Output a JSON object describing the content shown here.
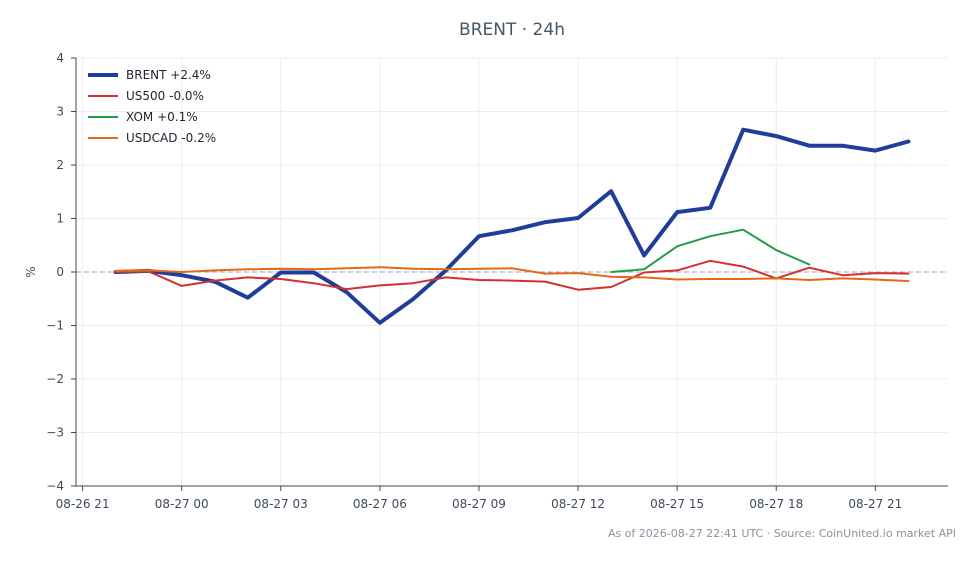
{
  "title": "BRENT · 24h",
  "footer": "As of 2026-08-27 22:41 UTC · Source: CoinUnited.io market API",
  "chart_data": {
    "type": "line",
    "title": "BRENT · 24h",
    "ylabel": "%",
    "xlabel": "",
    "ylim": [
      -4,
      4
    ],
    "yticks": [
      -4,
      -3,
      -2,
      -1,
      0,
      1,
      2,
      3,
      4
    ],
    "ytick_labels": [
      "−4",
      "−3",
      "−2",
      "−1",
      "0",
      "1",
      "2",
      "3",
      "4"
    ],
    "xlim": [
      "08-26 20:48",
      "08-27 23:12"
    ],
    "xticks": [
      "08-26 21:00",
      "08-27 00:00",
      "08-27 03:00",
      "08-27 06:00",
      "08-27 09:00",
      "08-27 12:00",
      "08-27 15:00",
      "08-27 18:00",
      "08-27 21:00"
    ],
    "xtick_labels": [
      "08-26 21",
      "08-27 00",
      "08-27 03",
      "08-27 06",
      "08-27 09",
      "08-27 12",
      "08-27 15",
      "08-27 18",
      "08-27 21"
    ],
    "grid": true,
    "zero_line": true,
    "legend_position": "top-left",
    "series": [
      {
        "name": "BRENT +2.4%",
        "color": "#1f3d99",
        "width": 4,
        "x": [
          "08-26 22:00",
          "08-26 23:00",
          "08-27 00:00",
          "08-27 01:00",
          "08-27 02:00",
          "08-27 03:00",
          "08-27 04:00",
          "08-27 05:00",
          "08-27 06:00",
          "08-27 07:00",
          "08-27 08:00",
          "08-27 09:00",
          "08-27 10:00",
          "08-27 11:00",
          "08-27 12:00",
          "08-27 13:00",
          "08-27 14:00",
          "08-27 15:00",
          "08-27 16:00",
          "08-27 17:00",
          "08-27 18:00",
          "08-27 19:00",
          "08-27 20:00",
          "08-27 21:00",
          "08-27 22:00"
        ],
        "values": [
          0.0,
          0.02,
          -0.06,
          -0.18,
          -0.48,
          -0.01,
          -0.01,
          -0.38,
          -0.95,
          -0.51,
          0.03,
          0.67,
          0.78,
          0.93,
          1.01,
          1.51,
          0.31,
          1.12,
          1.2,
          2.66,
          2.54,
          2.36,
          2.36,
          2.27,
          2.44
        ]
      },
      {
        "name": "US500 -0.0%",
        "color": "#d62f2f",
        "width": 2,
        "x": [
          "08-26 22:00",
          "08-26 23:00",
          "08-27 00:00",
          "08-27 01:00",
          "08-27 02:00",
          "08-27 03:00",
          "08-27 04:00",
          "08-27 05:00",
          "08-27 06:00",
          "08-27 07:00",
          "08-27 08:00",
          "08-27 09:00",
          "08-27 10:00",
          "08-27 11:00",
          "08-27 12:00",
          "08-27 13:00",
          "08-27 14:00",
          "08-27 15:00",
          "08-27 16:00",
          "08-27 17:00",
          "08-27 18:00",
          "08-27 19:00",
          "08-27 20:00",
          "08-27 21:00",
          "08-27 22:00"
        ],
        "values": [
          0.0,
          0.01,
          -0.26,
          -0.16,
          -0.1,
          -0.13,
          -0.21,
          -0.32,
          -0.25,
          -0.21,
          -0.1,
          -0.15,
          -0.16,
          -0.18,
          -0.33,
          -0.28,
          -0.01,
          0.03,
          0.21,
          0.1,
          -0.12,
          0.08,
          -0.06,
          -0.02,
          -0.03
        ]
      },
      {
        "name": "XOM +0.1%",
        "color": "#1f9e4a",
        "width": 2,
        "x": [
          "08-27 13:00",
          "08-27 14:00",
          "08-27 15:00",
          "08-27 16:00",
          "08-27 17:00",
          "08-27 18:00",
          "08-27 19:00"
        ],
        "values": [
          0.0,
          0.05,
          0.48,
          0.67,
          0.79,
          0.41,
          0.14
        ]
      },
      {
        "name": "USDCAD -0.2%",
        "color": "#e3691a",
        "width": 2,
        "x": [
          "08-26 22:00",
          "08-26 23:00",
          "08-27 00:00",
          "08-27 01:00",
          "08-27 02:00",
          "08-27 03:00",
          "08-27 04:00",
          "08-27 05:00",
          "08-27 06:00",
          "08-27 07:00",
          "08-27 08:00",
          "08-27 09:00",
          "08-27 10:00",
          "08-27 11:00",
          "08-27 12:00",
          "08-27 13:00",
          "08-27 14:00",
          "08-27 15:00",
          "08-27 16:00",
          "08-27 17:00",
          "08-27 18:00",
          "08-27 19:00",
          "08-27 20:00",
          "08-27 21:00",
          "08-27 22:00"
        ],
        "values": [
          0.02,
          0.03,
          0.0,
          0.03,
          0.05,
          0.06,
          0.05,
          0.07,
          0.09,
          0.06,
          0.05,
          0.06,
          0.07,
          -0.03,
          -0.02,
          -0.09,
          -0.1,
          -0.14,
          -0.13,
          -0.13,
          -0.12,
          -0.15,
          -0.12,
          -0.14,
          -0.17
        ]
      }
    ]
  }
}
